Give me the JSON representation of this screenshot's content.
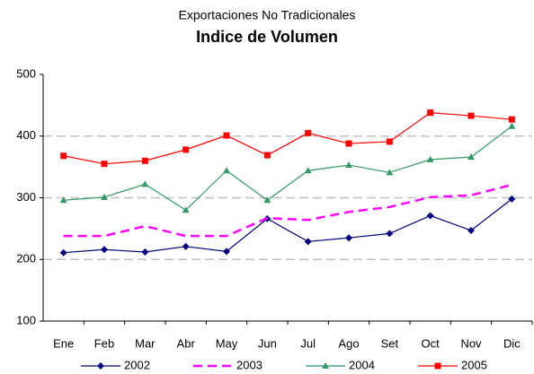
{
  "chart_data": {
    "type": "line",
    "title": "Exportaciones No Tradicionales",
    "subtitle": "Indice de Volumen",
    "categories": [
      "Ene",
      "Feb",
      "Mar",
      "Abr",
      "May",
      "Jun",
      "Jul",
      "Ago",
      "Set",
      "Oct",
      "Nov",
      "Dic"
    ],
    "series": [
      {
        "name": "2002",
        "color": "#000080",
        "marker": "diamond",
        "dashed": false,
        "values": [
          211,
          216,
          212,
          221,
          213,
          266,
          229,
          235,
          242,
          271,
          247,
          298
        ]
      },
      {
        "name": "2003",
        "color": "#ff00ff",
        "marker": "none",
        "dashed": true,
        "values": [
          238,
          238,
          254,
          238,
          238,
          267,
          264,
          277,
          285,
          301,
          304,
          321
        ]
      },
      {
        "name": "2004",
        "color": "#339966",
        "marker": "triangle",
        "dashed": false,
        "values": [
          296,
          301,
          322,
          280,
          344,
          296,
          344,
          353,
          341,
          362,
          366,
          416
        ]
      },
      {
        "name": "2005",
        "color": "#ff0000",
        "marker": "square",
        "dashed": false,
        "values": [
          368,
          355,
          360,
          378,
          401,
          369,
          405,
          388,
          391,
          438,
          433,
          427
        ]
      }
    ],
    "ylim": [
      100,
      500
    ],
    "yticks": [
      100,
      200,
      300,
      400,
      500
    ],
    "grid": true,
    "legend": "bottom"
  }
}
